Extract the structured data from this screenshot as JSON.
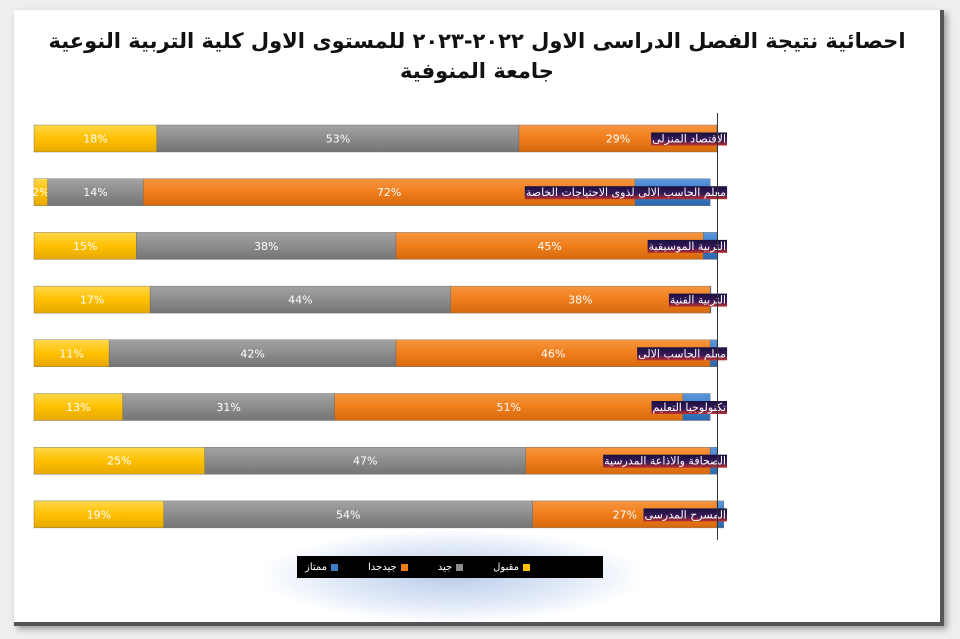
{
  "title_lines": [
    "احصائية نتيجة الفصل الدراسى الاول ٢٠٢٢-٢٠٢٣ للمستوى الاول كلية التربية النوعية",
    "جامعة المنوفية"
  ],
  "chart_data": {
    "type": "bar",
    "orientation": "horizontal",
    "stacked": "100%",
    "categories": [
      "الاقتصاد المنزلى",
      "معلم الحاسب الالى لذوى الاحتياجات الخاصة",
      "التربية الموسيقية",
      "التربية الفنية",
      "معلم الحاسب الالى",
      "تكنولوجيا التعليم",
      "الصحافة والاذاعة المدرسية",
      "المسرح المدرسى"
    ],
    "series": [
      {
        "name": "مقبول",
        "color": "#ffc000",
        "values": [
          18,
          2,
          15,
          17,
          11,
          13,
          25,
          19
        ]
      },
      {
        "name": "جيد",
        "color": "#8c8c8c",
        "values": [
          53,
          14,
          38,
          44,
          42,
          31,
          47,
          54
        ]
      },
      {
        "name": "جيدجدا",
        "color": "#f07d1a",
        "values": [
          29,
          72,
          45,
          38,
          46,
          51,
          27,
          27
        ]
      },
      {
        "name": "ممتاز",
        "color": "#3d7ec9",
        "values": [
          0,
          11,
          2,
          0,
          1,
          4,
          1,
          1
        ]
      }
    ],
    "value_suffix": "%",
    "legend_position": "bottom"
  }
}
